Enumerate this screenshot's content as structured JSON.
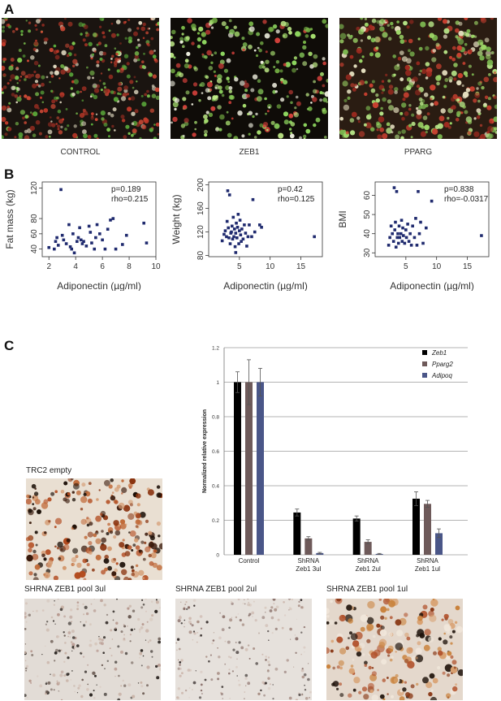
{
  "panels": {
    "a": {
      "letter": "A",
      "captions": [
        "CONTROL",
        "ZEB1",
        "PPARG"
      ]
    },
    "b": {
      "letter": "B"
    },
    "c": {
      "letter": "C",
      "image_labels": [
        "TRC2 empty",
        "SHRNA ZEB1 pool 3ul",
        "SHRNA ZEB1 pool 2ul",
        "SHRNA ZEB1 pool 1ul"
      ]
    }
  },
  "chart_data": [
    {
      "type": "scatter",
      "xlabel": "Adiponectin (µg/ml)",
      "ylabel": "Fat mass (kg)",
      "xlim": [
        1.5,
        10
      ],
      "ylim": [
        30,
        128
      ],
      "xticks": [
        2,
        4,
        6,
        8,
        10
      ],
      "yticks": [
        40,
        60,
        80,
        120
      ],
      "annotations": [
        "p=0.189",
        "rho=0.215"
      ],
      "marker_color": "#1f2a6e",
      "points": [
        [
          2.0,
          42
        ],
        [
          2.4,
          40
        ],
        [
          2.5,
          50
        ],
        [
          2.6,
          55
        ],
        [
          2.7,
          45
        ],
        [
          2.9,
          118
        ],
        [
          3.0,
          58
        ],
        [
          3.1,
          52
        ],
        [
          3.3,
          47
        ],
        [
          3.5,
          72
        ],
        [
          3.6,
          43
        ],
        [
          3.7,
          40
        ],
        [
          3.8,
          60
        ],
        [
          3.9,
          35
        ],
        [
          4.1,
          50
        ],
        [
          4.2,
          55
        ],
        [
          4.3,
          68
        ],
        [
          4.4,
          52
        ],
        [
          4.5,
          47
        ],
        [
          4.6,
          50
        ],
        [
          4.8,
          44
        ],
        [
          5.0,
          70
        ],
        [
          5.1,
          62
        ],
        [
          5.2,
          48
        ],
        [
          5.4,
          40
        ],
        [
          5.5,
          55
        ],
        [
          5.6,
          72
        ],
        [
          5.8,
          60
        ],
        [
          6.0,
          52
        ],
        [
          6.2,
          40
        ],
        [
          6.4,
          66
        ],
        [
          6.6,
          78
        ],
        [
          6.8,
          80
        ],
        [
          7.0,
          40
        ],
        [
          7.5,
          46
        ],
        [
          7.8,
          58
        ],
        [
          9.1,
          74
        ],
        [
          9.3,
          48
        ]
      ]
    },
    {
      "type": "scatter",
      "xlabel": "Adiponectin (µg/ml)",
      "ylabel": "Weight (kg)",
      "xlim": [
        0,
        18.5
      ],
      "ylim": [
        78,
        205
      ],
      "xticks": [
        5,
        10,
        15
      ],
      "yticks": [
        80,
        120,
        160,
        200
      ],
      "annotations": [
        "p=0.42",
        "rho=0.125"
      ],
      "marker_color": "#1f2a6e",
      "points": [
        [
          2.2,
          105
        ],
        [
          2.5,
          116
        ],
        [
          2.7,
          122
        ],
        [
          2.9,
          112
        ],
        [
          3.0,
          138
        ],
        [
          3.1,
          190
        ],
        [
          3.2,
          127
        ],
        [
          3.3,
          110
        ],
        [
          3.4,
          183
        ],
        [
          3.5,
          100
        ],
        [
          3.6,
          118
        ],
        [
          3.7,
          120
        ],
        [
          3.8,
          130
        ],
        [
          3.9,
          108
        ],
        [
          4.0,
          145
        ],
        [
          4.1,
          112
        ],
        [
          4.2,
          125
        ],
        [
          4.3,
          95
        ],
        [
          4.4,
          118
        ],
        [
          4.5,
          135
        ],
        [
          4.6,
          110
        ],
        [
          4.7,
          128
        ],
        [
          4.8,
          150
        ],
        [
          4.9,
          100
        ],
        [
          5.0,
          122
        ],
        [
          5.1,
          140
        ],
        [
          5.2,
          115
        ],
        [
          5.4,
          125
        ],
        [
          5.6,
          108
        ],
        [
          5.8,
          132
        ],
        [
          6.0,
          118
        ],
        [
          6.2,
          96
        ],
        [
          6.4,
          112
        ],
        [
          6.6,
          132
        ],
        [
          7.0,
          112
        ],
        [
          7.2,
          175
        ],
        [
          7.5,
          120
        ],
        [
          8.3,
          132
        ],
        [
          8.6,
          128
        ],
        [
          17.2,
          112
        ],
        [
          4.4,
          85
        ],
        [
          5.3,
          104
        ]
      ]
    },
    {
      "type": "scatter",
      "xlabel": "Adiponectin (µg/ml)",
      "ylabel": "BMI",
      "xlim": [
        0,
        18.5
      ],
      "ylim": [
        28,
        67
      ],
      "xticks": [
        5,
        10,
        15
      ],
      "yticks": [
        30,
        40,
        50,
        60
      ],
      "annotations": [
        "p=0.838",
        "rho=-0.0317"
      ],
      "marker_color": "#1f2a6e",
      "points": [
        [
          2.2,
          34
        ],
        [
          2.4,
          38
        ],
        [
          2.6,
          44
        ],
        [
          2.8,
          40
        ],
        [
          3.0,
          36
        ],
        [
          3.1,
          64
        ],
        [
          3.2,
          42
        ],
        [
          3.3,
          46
        ],
        [
          3.4,
          33
        ],
        [
          3.5,
          62
        ],
        [
          3.6,
          38
        ],
        [
          3.7,
          40
        ],
        [
          3.8,
          35
        ],
        [
          3.9,
          44
        ],
        [
          4.0,
          38
        ],
        [
          4.2,
          40
        ],
        [
          4.3,
          47
        ],
        [
          4.4,
          36
        ],
        [
          4.5,
          43
        ],
        [
          4.6,
          39
        ],
        [
          4.8,
          35
        ],
        [
          5.0,
          42
        ],
        [
          5.1,
          38
        ],
        [
          5.3,
          45
        ],
        [
          5.5,
          36
        ],
        [
          5.7,
          40
        ],
        [
          5.9,
          34
        ],
        [
          6.1,
          44
        ],
        [
          6.4,
          38
        ],
        [
          6.6,
          48
        ],
        [
          6.8,
          34
        ],
        [
          7.0,
          62
        ],
        [
          7.2,
          40
        ],
        [
          7.4,
          46
        ],
        [
          7.8,
          35
        ],
        [
          8.3,
          43
        ],
        [
          9.2,
          57
        ],
        [
          17.3,
          39
        ]
      ]
    },
    {
      "type": "bar",
      "ylabel": "Normalized relative expression",
      "ylim": [
        0,
        1.2
      ],
      "yticks": [
        "0",
        "0.2",
        "0.4",
        "0.6",
        "0.8",
        "1",
        "1.2"
      ],
      "categories": [
        "Control",
        "ShRNA Zeb1 3ul",
        "ShRNA Zeb1 2ul",
        "ShRNA Zeb1 1ul"
      ],
      "category_lines": [
        [
          "Control"
        ],
        [
          "ShRNA",
          "Zeb1 3ul"
        ],
        [
          "ShRNA",
          "Zeb1 2ul"
        ],
        [
          "ShRNA",
          "Zeb1 1ul"
        ]
      ],
      "legend_position": "top-right",
      "series": [
        {
          "name": "Zeb1",
          "color": "#000000",
          "values": [
            1.0,
            0.245,
            0.21,
            0.325
          ],
          "errors": [
            0.06,
            0.02,
            0.015,
            0.04
          ]
        },
        {
          "name": "Pparg2",
          "color": "#6e5a5a",
          "values": [
            1.0,
            0.095,
            0.075,
            0.295
          ],
          "errors": [
            0.13,
            0.01,
            0.012,
            0.02
          ]
        },
        {
          "name": "Adipoq",
          "color": "#4a5688",
          "values": [
            1.0,
            0.01,
            0.005,
            0.125
          ],
          "errors": [
            0.08,
            0.004,
            0.003,
            0.025
          ]
        }
      ]
    }
  ]
}
